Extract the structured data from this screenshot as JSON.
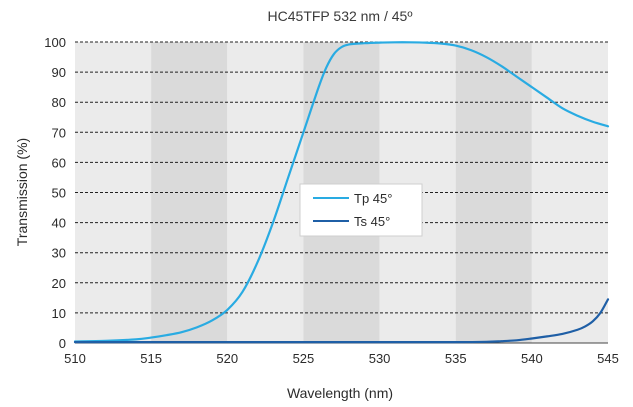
{
  "chart_data": {
    "type": "line",
    "title": "HC45TFP 532 nm / 45º",
    "xlabel": "Wavelength (nm)",
    "ylabel": "Transmission (%)",
    "xlim": [
      510,
      545
    ],
    "ylim": [
      0,
      100
    ],
    "xticks": [
      510,
      515,
      520,
      525,
      530,
      535,
      540,
      545
    ],
    "yticks": [
      0,
      10,
      20,
      30,
      40,
      50,
      60,
      70,
      80,
      90,
      100
    ],
    "grid": "horizontal dashed",
    "legend": "center",
    "band_colors": [
      "#ebebeb",
      "#dadada"
    ],
    "series": [
      {
        "name": "Tp 45°",
        "color": "#29abe2",
        "x": [
          510,
          512,
          514,
          515,
          516,
          517,
          518,
          519,
          520,
          521,
          522,
          523,
          524,
          525,
          526,
          526.5,
          527,
          527.5,
          528,
          529,
          530,
          531,
          532,
          533,
          534,
          535,
          536,
          537,
          538,
          539,
          540,
          541,
          542,
          543,
          544,
          545
        ],
        "y": [
          0.5,
          0.7,
          1.2,
          1.8,
          2.6,
          3.6,
          5.2,
          7.5,
          11.0,
          17.0,
          27.0,
          40.0,
          55.0,
          70.0,
          85.0,
          91.5,
          96.0,
          98.3,
          99.2,
          99.6,
          99.8,
          99.9,
          99.9,
          99.8,
          99.5,
          98.8,
          97.3,
          95.0,
          92.0,
          88.5,
          85.0,
          81.5,
          78.0,
          75.5,
          73.5,
          72.0
        ]
      },
      {
        "name": "Ts 45°",
        "color": "#1f5fa6",
        "x": [
          510,
          515,
          520,
          525,
          530,
          535,
          537,
          538,
          539,
          540,
          541,
          542,
          543,
          543.5,
          544,
          544.5,
          545
        ],
        "y": [
          0.3,
          0.3,
          0.3,
          0.3,
          0.3,
          0.3,
          0.4,
          0.6,
          0.9,
          1.5,
          2.2,
          3.0,
          4.4,
          5.5,
          7.2,
          10.0,
          14.5
        ]
      }
    ]
  }
}
